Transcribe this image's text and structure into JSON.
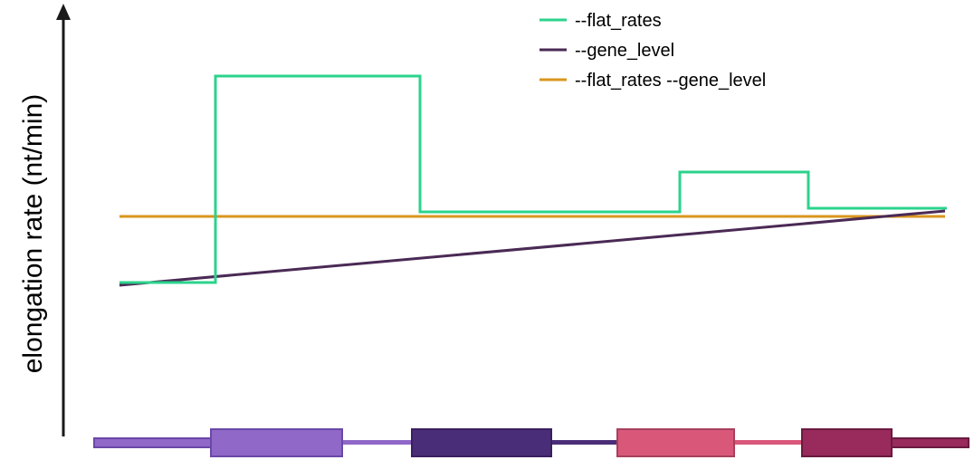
{
  "diagram": {
    "ylabel": "elongation rate (nt/min)"
  },
  "legend": {
    "items": [
      {
        "label": "--flat_rates",
        "color": "#2bd38c"
      },
      {
        "label": "--gene_level",
        "color": "#4a2a55"
      },
      {
        "label": "--flat_rates --gene_level",
        "color": "#d9961e"
      }
    ]
  },
  "gene_model": {
    "exon_colors": [
      "#9068c8",
      "#4a2d78",
      "#d9587a",
      "#982a5c"
    ],
    "intron_colors": [
      "#9068c8",
      "#4a2d78",
      "#d9587a"
    ],
    "utr_colors": [
      "#7a55b8",
      "#7a2355"
    ]
  }
}
